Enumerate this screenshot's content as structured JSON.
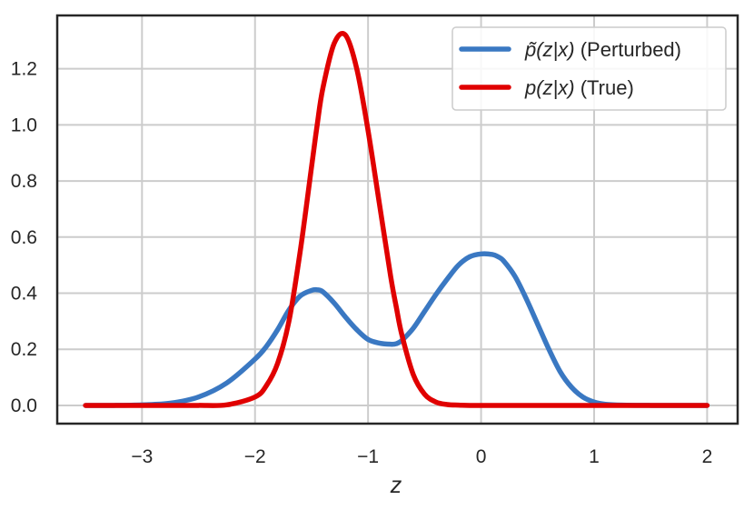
{
  "chart_data": {
    "type": "line",
    "title": "",
    "xlabel": "z",
    "ylabel": "",
    "xlim": [
      -3.75,
      2.27
    ],
    "ylim": [
      -0.065,
      1.39
    ],
    "xticks": [
      -3,
      -2,
      -1,
      0,
      1,
      2
    ],
    "xtick_labels": [
      "−3",
      "−2",
      "−1",
      "0",
      "1",
      "2"
    ],
    "yticks": [
      0.0,
      0.2,
      0.4,
      0.6,
      0.8,
      1.0,
      1.2
    ],
    "ytick_labels": [
      "0.0",
      "0.2",
      "0.4",
      "0.6",
      "0.8",
      "1.0",
      "1.2"
    ],
    "grid": true,
    "legend_position": "top-right",
    "x": [
      -3.5,
      -3.25,
      -3.0,
      -2.75,
      -2.5,
      -2.25,
      -2.0,
      -1.9,
      -1.8,
      -1.7,
      -1.6,
      -1.5,
      -1.45,
      -1.4,
      -1.3,
      -1.2,
      -1.1,
      -1.0,
      -0.9,
      -0.8,
      -0.75,
      -0.7,
      -0.6,
      -0.5,
      -0.4,
      -0.3,
      -0.2,
      -0.1,
      0.0,
      0.1,
      0.15,
      0.2,
      0.3,
      0.4,
      0.5,
      0.6,
      0.7,
      0.8,
      0.9,
      1.0,
      1.1,
      1.25,
      1.5,
      1.75,
      2.0
    ],
    "series": [
      {
        "name_prefix": "p̃(z|x)",
        "name_suffix": " (Perturbed)",
        "color": "#3a78c2",
        "values": [
          0.0,
          0.0,
          0.002,
          0.008,
          0.03,
          0.08,
          0.165,
          0.21,
          0.27,
          0.34,
          0.39,
          0.41,
          0.412,
          0.405,
          0.365,
          0.315,
          0.27,
          0.235,
          0.222,
          0.218,
          0.22,
          0.232,
          0.275,
          0.335,
          0.395,
          0.45,
          0.5,
          0.53,
          0.54,
          0.538,
          0.53,
          0.515,
          0.46,
          0.38,
          0.29,
          0.2,
          0.12,
          0.065,
          0.03,
          0.012,
          0.004,
          0.001,
          0.0,
          0.0,
          0.0
        ]
      },
      {
        "name_prefix": "p(z|x)",
        "name_suffix": " (True)",
        "color": "#e00000",
        "values": [
          0.0,
          0.0,
          0.0,
          0.0,
          0.0,
          0.002,
          0.03,
          0.07,
          0.15,
          0.3,
          0.55,
          0.85,
          1.0,
          1.13,
          1.29,
          1.32,
          1.2,
          0.98,
          0.72,
          0.46,
          0.35,
          0.25,
          0.11,
          0.04,
          0.012,
          0.003,
          0.001,
          0.0,
          0.0,
          0.0,
          0.0,
          0.0,
          0.0,
          0.0,
          0.0,
          0.0,
          0.0,
          0.0,
          0.0,
          0.0,
          0.0,
          0.0,
          0.0,
          0.0,
          0.0
        ]
      }
    ]
  }
}
